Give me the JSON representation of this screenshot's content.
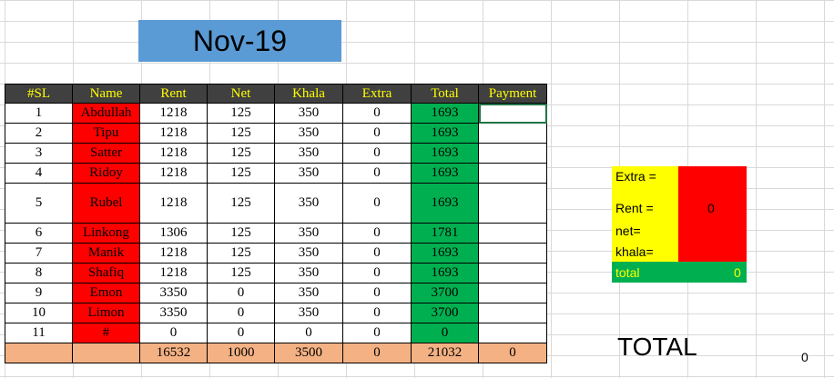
{
  "title": "Nov-19",
  "headers": [
    "#SL",
    "Name",
    "Rent",
    "Net",
    "Khala",
    "Extra",
    "Total",
    "Payment"
  ],
  "rows": [
    {
      "sl": "1",
      "name": "Abdullah",
      "rent": "1218",
      "net": "125",
      "khala": "350",
      "extra": "0",
      "total": "1693",
      "payment": ""
    },
    {
      "sl": "2",
      "name": "Tipu",
      "rent": "1218",
      "net": "125",
      "khala": "350",
      "extra": "0",
      "total": "1693",
      "payment": ""
    },
    {
      "sl": "3",
      "name": "Satter",
      "rent": "1218",
      "net": "125",
      "khala": "350",
      "extra": "0",
      "total": "1693",
      "payment": ""
    },
    {
      "sl": "4",
      "name": "Ridoy",
      "rent": "1218",
      "net": "125",
      "khala": "350",
      "extra": "0",
      "total": "1693",
      "payment": ""
    },
    {
      "sl": "5",
      "name": "Rubel",
      "rent": "1218",
      "net": "125",
      "khala": "350",
      "extra": "0",
      "total": "1693",
      "payment": ""
    },
    {
      "sl": "6",
      "name": "Linkong",
      "rent": "1306",
      "net": "125",
      "khala": "350",
      "extra": "0",
      "total": "1781",
      "payment": ""
    },
    {
      "sl": "7",
      "name": "Manik",
      "rent": "1218",
      "net": "125",
      "khala": "350",
      "extra": "0",
      "total": "1693",
      "payment": ""
    },
    {
      "sl": "8",
      "name": "Shafiq",
      "rent": "1218",
      "net": "125",
      "khala": "350",
      "extra": "0",
      "total": "1693",
      "payment": ""
    },
    {
      "sl": "9",
      "name": "Emon",
      "rent": "3350",
      "net": "0",
      "khala": "350",
      "extra": "0",
      "total": "3700",
      "payment": ""
    },
    {
      "sl": "10",
      "name": "Limon",
      "rent": "3350",
      "net": "0",
      "khala": "350",
      "extra": "0",
      "total": "3700",
      "payment": ""
    },
    {
      "sl": "11",
      "name": "#",
      "rent": "0",
      "net": "0",
      "khala": "0",
      "extra": "0",
      "total": "0",
      "payment": ""
    }
  ],
  "sums": {
    "rent": "16532",
    "net": "1000",
    "khala": "3500",
    "extra": "0",
    "total": "21032",
    "payment": "0"
  },
  "side": {
    "extra_label": "Extra =",
    "rent_label": "Rent =",
    "rent_value": "0",
    "net_label": "net=",
    "khala_label": "khala=",
    "total_label": "total",
    "total_value": "0"
  },
  "grand_total": {
    "label": "TOTAL",
    "value": "0"
  },
  "colors": {
    "header_bg": "#404040",
    "header_text": "#ffff00",
    "name_bg": "#ff0000",
    "total_bg": "#00b050",
    "sum_row_bg": "#f4b183",
    "title_bg": "#5b9bd5"
  }
}
